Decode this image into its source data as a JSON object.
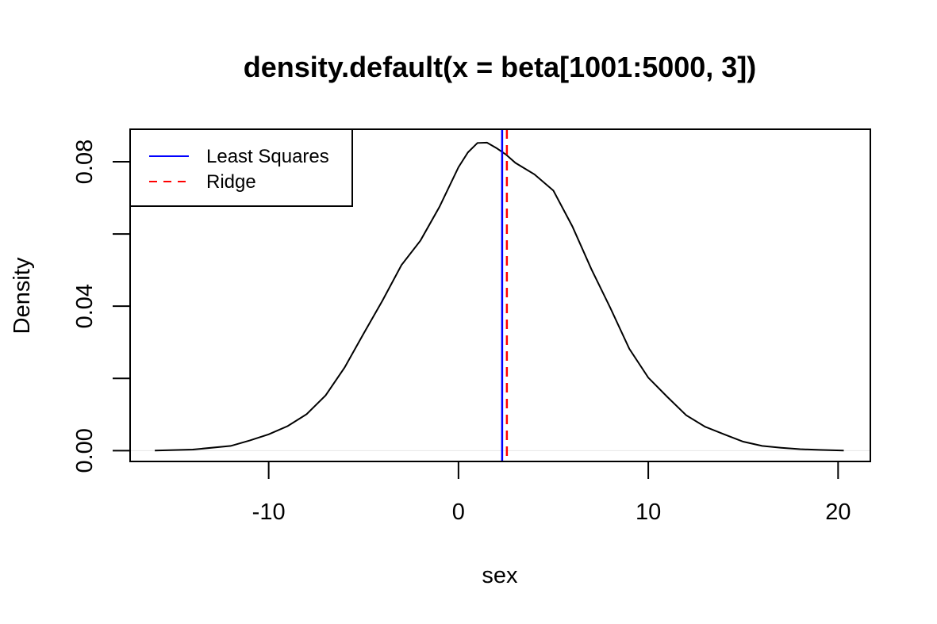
{
  "chart_data": {
    "type": "line",
    "title": "density.default(x = beta[1001:5000, 3])",
    "xlabel": "sex",
    "ylabel": "Density",
    "xlim": [
      -17.3,
      21.7
    ],
    "ylim": [
      -0.003,
      0.089
    ],
    "x_ticks": [
      -10,
      0,
      10,
      20
    ],
    "x_tick_labels": [
      "-10",
      "0",
      "10",
      "20"
    ],
    "y_ticks": [
      0.0,
      0.02,
      0.04,
      0.06,
      0.08
    ],
    "y_tick_labels": [
      "0.00",
      "",
      "0.04",
      "",
      "0.08"
    ],
    "legend_position": "top-left",
    "series": [
      {
        "kind": "density",
        "color": "#000000",
        "x": [
          -16.0,
          -14.0,
          -12.0,
          -11.0,
          -10.0,
          -9.0,
          -8.0,
          -7.0,
          -6.0,
          -5.0,
          -4.0,
          -3.0,
          -2.0,
          -1.0,
          0.0,
          0.5,
          1.0,
          1.5,
          2.0,
          2.5,
          3.0,
          4.0,
          5.0,
          6.0,
          7.0,
          8.0,
          9.0,
          10.0,
          11.0,
          12.0,
          13.0,
          14.0,
          15.0,
          16.0,
          17.0,
          18.0,
          19.0,
          20.3
        ],
        "y": [
          0.0,
          0.0003,
          0.0013,
          0.0028,
          0.0045,
          0.0068,
          0.0101,
          0.0153,
          0.023,
          0.0324,
          0.0416,
          0.0514,
          0.0582,
          0.0675,
          0.0785,
          0.0826,
          0.0852,
          0.0853,
          0.0838,
          0.082,
          0.0797,
          0.0765,
          0.072,
          0.0621,
          0.0503,
          0.0395,
          0.0282,
          0.0202,
          0.0149,
          0.0098,
          0.0066,
          0.0045,
          0.0025,
          0.0013,
          0.0008,
          0.0004,
          0.0002,
          0.0
        ]
      },
      {
        "name": "Least Squares",
        "kind": "vline",
        "color": "#0000ff",
        "dash": "solid",
        "x": 2.3
      },
      {
        "name": "Ridge",
        "kind": "vline",
        "color": "#ff0000",
        "dash": "dashed",
        "x": 2.55
      }
    ]
  }
}
